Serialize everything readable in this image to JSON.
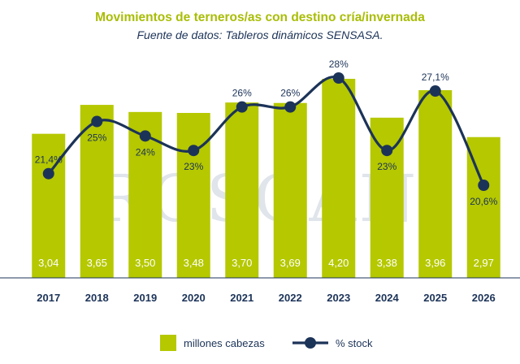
{
  "chart_data": {
    "type": "bar",
    "title": "Movimientos de terneros/as con destino cría/invernada",
    "subtitle": "Fuente de datos: Tableros dinámicos SENSASA.",
    "categories": [
      "2017",
      "2018",
      "2019",
      "2020",
      "2021",
      "2022",
      "2023",
      "2024",
      "2025",
      "2026"
    ],
    "series": [
      {
        "name": "millones cabezas",
        "type": "bar",
        "color": "#b5c800",
        "values": [
          3.04,
          3.65,
          3.5,
          3.48,
          3.7,
          3.69,
          4.2,
          3.38,
          3.96,
          2.97
        ],
        "labels": [
          "3,04",
          "3,65",
          "3,50",
          "3,48",
          "3,70",
          "3,69",
          "4,20",
          "3,38",
          "3,96",
          "2,97"
        ]
      },
      {
        "name": "% stock",
        "type": "line",
        "color": "#1c3358",
        "values": [
          21.4,
          25,
          24,
          23,
          26,
          26,
          28,
          23,
          27.1,
          20.6
        ],
        "labels": [
          "21,4%",
          "25%",
          "24%",
          "23%",
          "26%",
          "26%",
          "28%",
          "23%",
          "27,1%",
          "20,6%"
        ]
      }
    ],
    "legend": {
      "position": "bottom-center"
    },
    "grid": false,
    "watermark": "ROSGAN"
  }
}
